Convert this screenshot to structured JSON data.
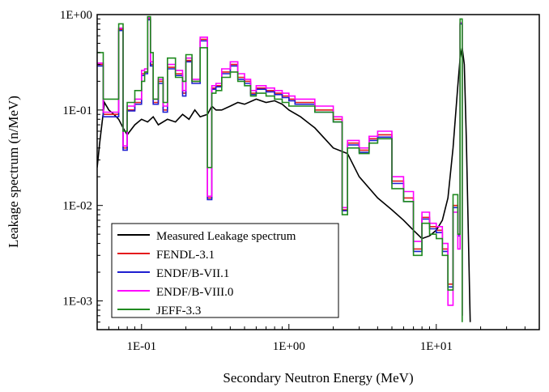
{
  "chart_data": {
    "type": "line",
    "title": "",
    "xlabel": "Secondary Neutron Energy (MeV)",
    "ylabel": "Leakage spectrum (n/MeV)",
    "xscale": "log",
    "yscale": "log",
    "xlim": [
      0.05,
      50
    ],
    "ylim": [
      0.0005,
      1
    ],
    "x_ticks": [
      {
        "value": 0.1,
        "label": "1E-01"
      },
      {
        "value": 1,
        "label": "1E+00"
      },
      {
        "value": 10,
        "label": "1E+01"
      }
    ],
    "y_ticks": [
      {
        "value": 1,
        "label": "1E+00"
      },
      {
        "value": 0.1,
        "label": "1E-01"
      },
      {
        "value": 0.01,
        "label": "1E-02"
      },
      {
        "value": 0.001,
        "label": "1E-03"
      }
    ],
    "legend_position": "bottom-left",
    "series": [
      {
        "name": "Measured Leakage spectrum",
        "color": "#000000",
        "style": "line",
        "x": [
          0.05,
          0.052,
          0.056,
          0.06,
          0.065,
          0.07,
          0.075,
          0.08,
          0.09,
          0.1,
          0.11,
          0.12,
          0.13,
          0.15,
          0.17,
          0.19,
          0.21,
          0.23,
          0.25,
          0.28,
          0.3,
          0.32,
          0.35,
          0.4,
          0.45,
          0.5,
          0.6,
          0.7,
          0.8,
          0.9,
          1.0,
          1.2,
          1.5,
          2.0,
          2.5,
          3.0,
          4.0,
          5.0,
          6.0,
          7.0,
          8.0,
          9.0,
          10.0,
          11.0,
          12.0,
          13.0,
          14.0,
          14.5,
          15.0,
          15.5,
          16.0,
          16.5,
          17.0
        ],
        "y": [
          0.025,
          0.045,
          0.12,
          0.1,
          0.09,
          0.08,
          0.065,
          0.055,
          0.07,
          0.08,
          0.075,
          0.085,
          0.07,
          0.08,
          0.075,
          0.09,
          0.08,
          0.1,
          0.085,
          0.09,
          0.11,
          0.1,
          0.1,
          0.11,
          0.12,
          0.115,
          0.13,
          0.12,
          0.125,
          0.115,
          0.1,
          0.085,
          0.065,
          0.04,
          0.035,
          0.02,
          0.012,
          0.009,
          0.007,
          0.0055,
          0.0045,
          0.0048,
          0.0055,
          0.007,
          0.012,
          0.04,
          0.18,
          0.35,
          0.45,
          0.3,
          0.05,
          0.005,
          0.0006
        ]
      },
      {
        "name": "FENDL-3.1",
        "color": "#e41a1c",
        "style": "step",
        "x": [
          0.05,
          0.055,
          0.06,
          0.07,
          0.075,
          0.08,
          0.09,
          0.1,
          0.105,
          0.11,
          0.115,
          0.12,
          0.13,
          0.14,
          0.15,
          0.17,
          0.19,
          0.2,
          0.22,
          0.25,
          0.28,
          0.3,
          0.32,
          0.35,
          0.4,
          0.45,
          0.5,
          0.55,
          0.6,
          0.7,
          0.8,
          0.9,
          1.0,
          1.1,
          1.2,
          1.5,
          2.0,
          2.3,
          2.5,
          3.0,
          3.5,
          4.0,
          5.0,
          6.0,
          7.0,
          8.0,
          9.0,
          10.0,
          11.0,
          12.0,
          13.0,
          14.0,
          14.5,
          15.0
        ],
        "y": [
          0.3,
          0.09,
          0.09,
          0.7,
          0.04,
          0.1,
          0.12,
          0.24,
          0.25,
          0.9,
          0.3,
          0.12,
          0.2,
          0.1,
          0.28,
          0.24,
          0.15,
          0.33,
          0.2,
          0.55,
          0.012,
          0.17,
          0.18,
          0.25,
          0.3,
          0.22,
          0.2,
          0.15,
          0.17,
          0.16,
          0.15,
          0.14,
          0.13,
          0.12,
          0.12,
          0.1,
          0.08,
          0.009,
          0.045,
          0.038,
          0.05,
          0.055,
          0.018,
          0.012,
          0.0035,
          0.0075,
          0.006,
          0.0055,
          0.0035,
          0.0015,
          0.01,
          0.005,
          0.8,
          0.0007
        ]
      },
      {
        "name": "ENDF/B-VII.1",
        "color": "#1f1fd0",
        "style": "step",
        "x": [
          0.05,
          0.055,
          0.06,
          0.07,
          0.075,
          0.08,
          0.09,
          0.1,
          0.105,
          0.11,
          0.115,
          0.12,
          0.13,
          0.14,
          0.15,
          0.17,
          0.19,
          0.2,
          0.22,
          0.25,
          0.28,
          0.3,
          0.32,
          0.35,
          0.4,
          0.45,
          0.5,
          0.55,
          0.6,
          0.7,
          0.8,
          0.9,
          1.0,
          1.1,
          1.2,
          1.5,
          2.0,
          2.3,
          2.5,
          3.0,
          3.5,
          4.0,
          5.0,
          6.0,
          7.0,
          8.0,
          9.0,
          10.0,
          11.0,
          12.0,
          13.0,
          14.0,
          14.5,
          15.0
        ],
        "y": [
          0.29,
          0.085,
          0.085,
          0.68,
          0.038,
          0.098,
          0.115,
          0.23,
          0.24,
          0.88,
          0.29,
          0.115,
          0.19,
          0.095,
          0.27,
          0.23,
          0.14,
          0.32,
          0.19,
          0.53,
          0.0115,
          0.165,
          0.175,
          0.24,
          0.29,
          0.21,
          0.19,
          0.145,
          0.165,
          0.155,
          0.145,
          0.135,
          0.125,
          0.115,
          0.115,
          0.095,
          0.075,
          0.0088,
          0.043,
          0.036,
          0.048,
          0.052,
          0.017,
          0.011,
          0.0033,
          0.0072,
          0.0057,
          0.0052,
          0.0033,
          0.0014,
          0.0095,
          0.0048,
          0.8,
          0.0007
        ]
      },
      {
        "name": "ENDF/B-VIII.0",
        "color": "#ff00ff",
        "style": "step",
        "x": [
          0.05,
          0.055,
          0.06,
          0.07,
          0.075,
          0.08,
          0.09,
          0.1,
          0.105,
          0.11,
          0.115,
          0.12,
          0.13,
          0.14,
          0.15,
          0.17,
          0.19,
          0.2,
          0.22,
          0.25,
          0.28,
          0.3,
          0.32,
          0.35,
          0.4,
          0.45,
          0.5,
          0.55,
          0.6,
          0.7,
          0.8,
          0.9,
          1.0,
          1.1,
          1.2,
          1.5,
          2.0,
          2.3,
          2.5,
          3.0,
          3.5,
          4.0,
          5.0,
          6.0,
          7.0,
          8.0,
          9.0,
          10.0,
          11.0,
          12.0,
          13.0,
          14.0,
          14.5,
          15.0
        ],
        "y": [
          0.31,
          0.095,
          0.095,
          0.72,
          0.042,
          0.11,
          0.13,
          0.26,
          0.27,
          0.92,
          0.32,
          0.13,
          0.21,
          0.11,
          0.3,
          0.26,
          0.16,
          0.35,
          0.21,
          0.58,
          0.0125,
          0.18,
          0.19,
          0.27,
          0.32,
          0.24,
          0.21,
          0.16,
          0.18,
          0.17,
          0.16,
          0.15,
          0.14,
          0.13,
          0.13,
          0.11,
          0.085,
          0.0095,
          0.048,
          0.04,
          0.053,
          0.06,
          0.02,
          0.014,
          0.0042,
          0.0085,
          0.0065,
          0.006,
          0.004,
          0.0009,
          0.0085,
          0.0035,
          0.82,
          0.0007
        ]
      },
      {
        "name": "JEFF-3.3",
        "color": "#1f8a1f",
        "style": "step",
        "x": [
          0.05,
          0.055,
          0.06,
          0.07,
          0.075,
          0.08,
          0.09,
          0.1,
          0.105,
          0.11,
          0.115,
          0.12,
          0.13,
          0.14,
          0.15,
          0.17,
          0.19,
          0.2,
          0.22,
          0.25,
          0.28,
          0.3,
          0.32,
          0.35,
          0.4,
          0.45,
          0.5,
          0.55,
          0.6,
          0.7,
          0.8,
          0.9,
          1.0,
          1.1,
          1.2,
          1.5,
          2.0,
          2.3,
          2.5,
          3.0,
          3.5,
          4.0,
          5.0,
          6.0,
          7.0,
          8.0,
          9.0,
          10.0,
          11.0,
          12.0,
          13.0,
          14.0,
          14.5,
          15.0
        ],
        "y": [
          0.4,
          0.13,
          0.13,
          0.8,
          0.06,
          0.12,
          0.16,
          0.2,
          0.25,
          0.95,
          0.4,
          0.13,
          0.22,
          0.12,
          0.35,
          0.22,
          0.2,
          0.38,
          0.2,
          0.45,
          0.025,
          0.15,
          0.16,
          0.22,
          0.25,
          0.2,
          0.18,
          0.14,
          0.15,
          0.14,
          0.13,
          0.12,
          0.11,
          0.11,
          0.11,
          0.095,
          0.075,
          0.008,
          0.04,
          0.035,
          0.045,
          0.05,
          0.015,
          0.011,
          0.003,
          0.0065,
          0.005,
          0.0045,
          0.003,
          0.0013,
          0.013,
          0.005,
          0.9,
          0.0006
        ]
      }
    ]
  }
}
